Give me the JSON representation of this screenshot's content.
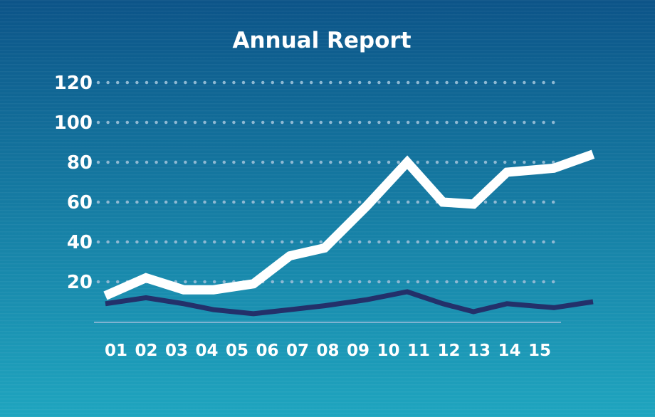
{
  "colors": {
    "background_top": "#0c5488",
    "background_bottom": "#1fa5bf",
    "text": "#ffffff",
    "grid_dots": "#8fb9d3",
    "baseline": "#7fb3d1",
    "series_primary": "#ffffff",
    "series_secondary": "#23306a"
  },
  "chart_data": {
    "type": "line",
    "title": "Annual Report",
    "xlabel": "",
    "ylabel": "",
    "x_tick_labels": [
      "01",
      "02",
      "03",
      "04",
      "05",
      "06",
      "07",
      "08",
      "09",
      "10",
      "11",
      "12",
      "13",
      "14",
      "15"
    ],
    "y_tick_labels": [
      "20",
      "40",
      "60",
      "80",
      "100",
      "120"
    ],
    "yticks": [
      20,
      40,
      60,
      80,
      100,
      120
    ],
    "ylim": [
      0,
      120
    ],
    "grid": "dotted horizontal",
    "legend": "none",
    "series": [
      {
        "color": "#ffffff",
        "points": [
          [
            1,
            13
          ],
          [
            2,
            22
          ],
          [
            3,
            16
          ],
          [
            4,
            16
          ],
          [
            5,
            19
          ],
          [
            6,
            33
          ],
          [
            7,
            37
          ],
          [
            8,
            58
          ],
          [
            9,
            80
          ],
          [
            10,
            60
          ],
          [
            11,
            59
          ],
          [
            12,
            75
          ],
          [
            13,
            77
          ],
          [
            14,
            84
          ]
        ]
      },
      {
        "color": "#23306a",
        "points": [
          [
            1,
            9
          ],
          [
            2,
            12
          ],
          [
            3,
            9
          ],
          [
            4,
            6
          ],
          [
            5,
            4
          ],
          [
            6,
            6
          ],
          [
            7,
            8
          ],
          [
            8,
            11
          ],
          [
            9,
            15
          ],
          [
            10,
            9
          ],
          [
            11,
            5
          ],
          [
            12,
            9
          ],
          [
            13,
            7
          ],
          [
            14,
            10
          ]
        ]
      }
    ]
  }
}
